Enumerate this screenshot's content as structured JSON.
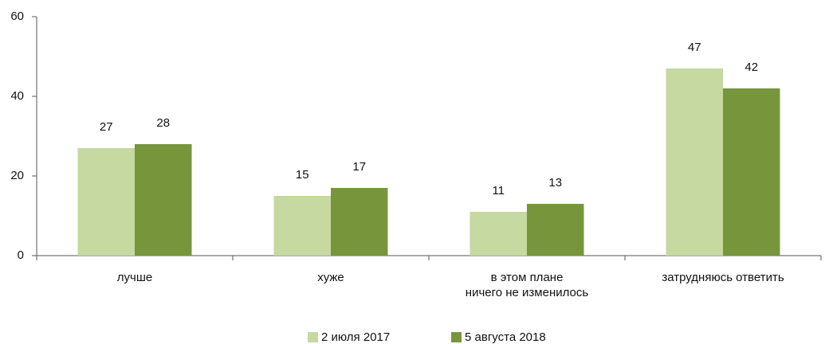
{
  "chart_data": {
    "type": "bar",
    "categories": [
      "лучше",
      "хуже",
      "в этом плане\nничего не изменилось",
      "затрудняюсь ответить"
    ],
    "series": [
      {
        "name": "2 июля 2017",
        "color": "#c5d9a0",
        "values": [
          27,
          15,
          11,
          47
        ]
      },
      {
        "name": "5 августа 2018",
        "color": "#77963c",
        "values": [
          28,
          17,
          13,
          42
        ]
      }
    ],
    "ylim": [
      0,
      60
    ],
    "yticks": [
      0,
      20,
      40,
      60
    ],
    "grid": false,
    "legend": "bottom"
  }
}
